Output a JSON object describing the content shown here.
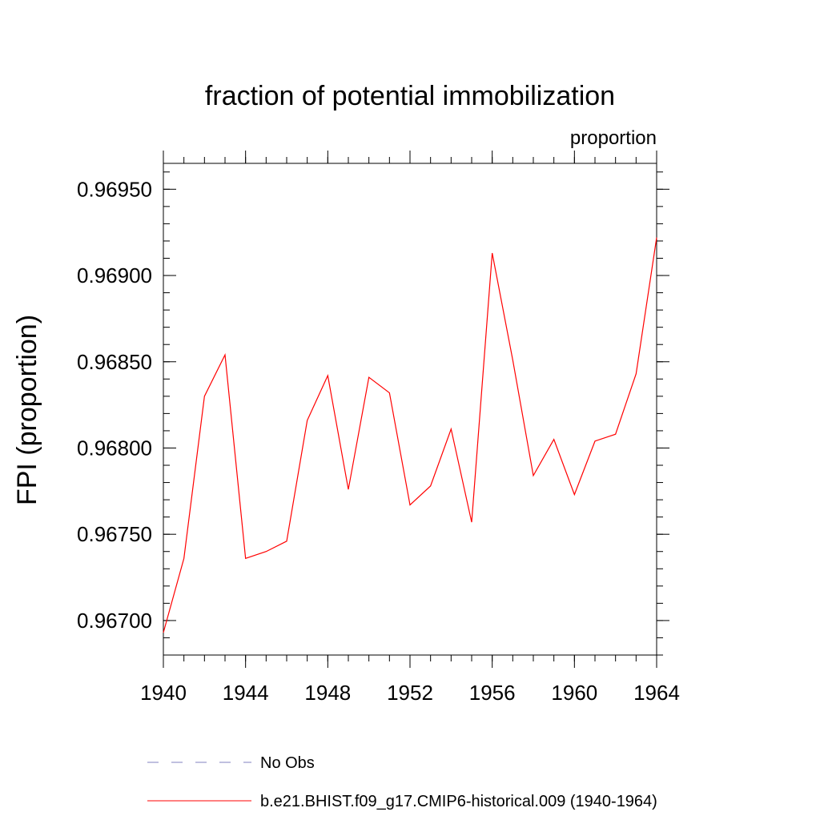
{
  "chart_data": {
    "type": "line",
    "title": "fraction of potential immobilization",
    "subtitle": "proportion",
    "xlabel": "",
    "ylabel": "FPI  (proportion)",
    "xlim": [
      1940,
      1964
    ],
    "ylim": [
      0.9668,
      0.96965
    ],
    "x_ticks": [
      1940,
      1944,
      1948,
      1952,
      1956,
      1960,
      1964
    ],
    "x_tick_labels": [
      "1940",
      "1944",
      "1948",
      "1952",
      "1956",
      "1960",
      "1964"
    ],
    "y_ticks": [
      0.967,
      0.9675,
      0.968,
      0.9685,
      0.969,
      0.9695
    ],
    "y_tick_labels": [
      "0.96700",
      "0.96750",
      "0.96800",
      "0.96850",
      "0.96900",
      "0.96950"
    ],
    "grid": false,
    "legend_position": "bottom",
    "series": [
      {
        "name": "b.e21.BHIST.f09_g17.CMIP6-historical.009 (1940-1964)",
        "color": "#ff0000",
        "x": [
          1940,
          1941,
          1942,
          1943,
          1944,
          1945,
          1946,
          1947,
          1948,
          1949,
          1950,
          1951,
          1952,
          1953,
          1954,
          1955,
          1956,
          1957,
          1958,
          1959,
          1960,
          1961,
          1962,
          1963,
          1964
        ],
        "values": [
          0.96693,
          0.96736,
          0.9683,
          0.96854,
          0.96736,
          0.9674,
          0.96746,
          0.96816,
          0.96842,
          0.96776,
          0.96841,
          0.96832,
          0.96767,
          0.96778,
          0.96811,
          0.96757,
          0.96913,
          0.96851,
          0.96784,
          0.96805,
          0.96773,
          0.96804,
          0.96808,
          0.96843,
          0.96922
        ]
      }
    ],
    "legend": [
      {
        "label": "No Obs",
        "color": "#8080c0",
        "style": "dashed"
      },
      {
        "label": "b.e21.BHIST.f09_g17.CMIP6-historical.009 (1940-1964)",
        "color": "#ff0000",
        "style": "solid"
      }
    ]
  }
}
